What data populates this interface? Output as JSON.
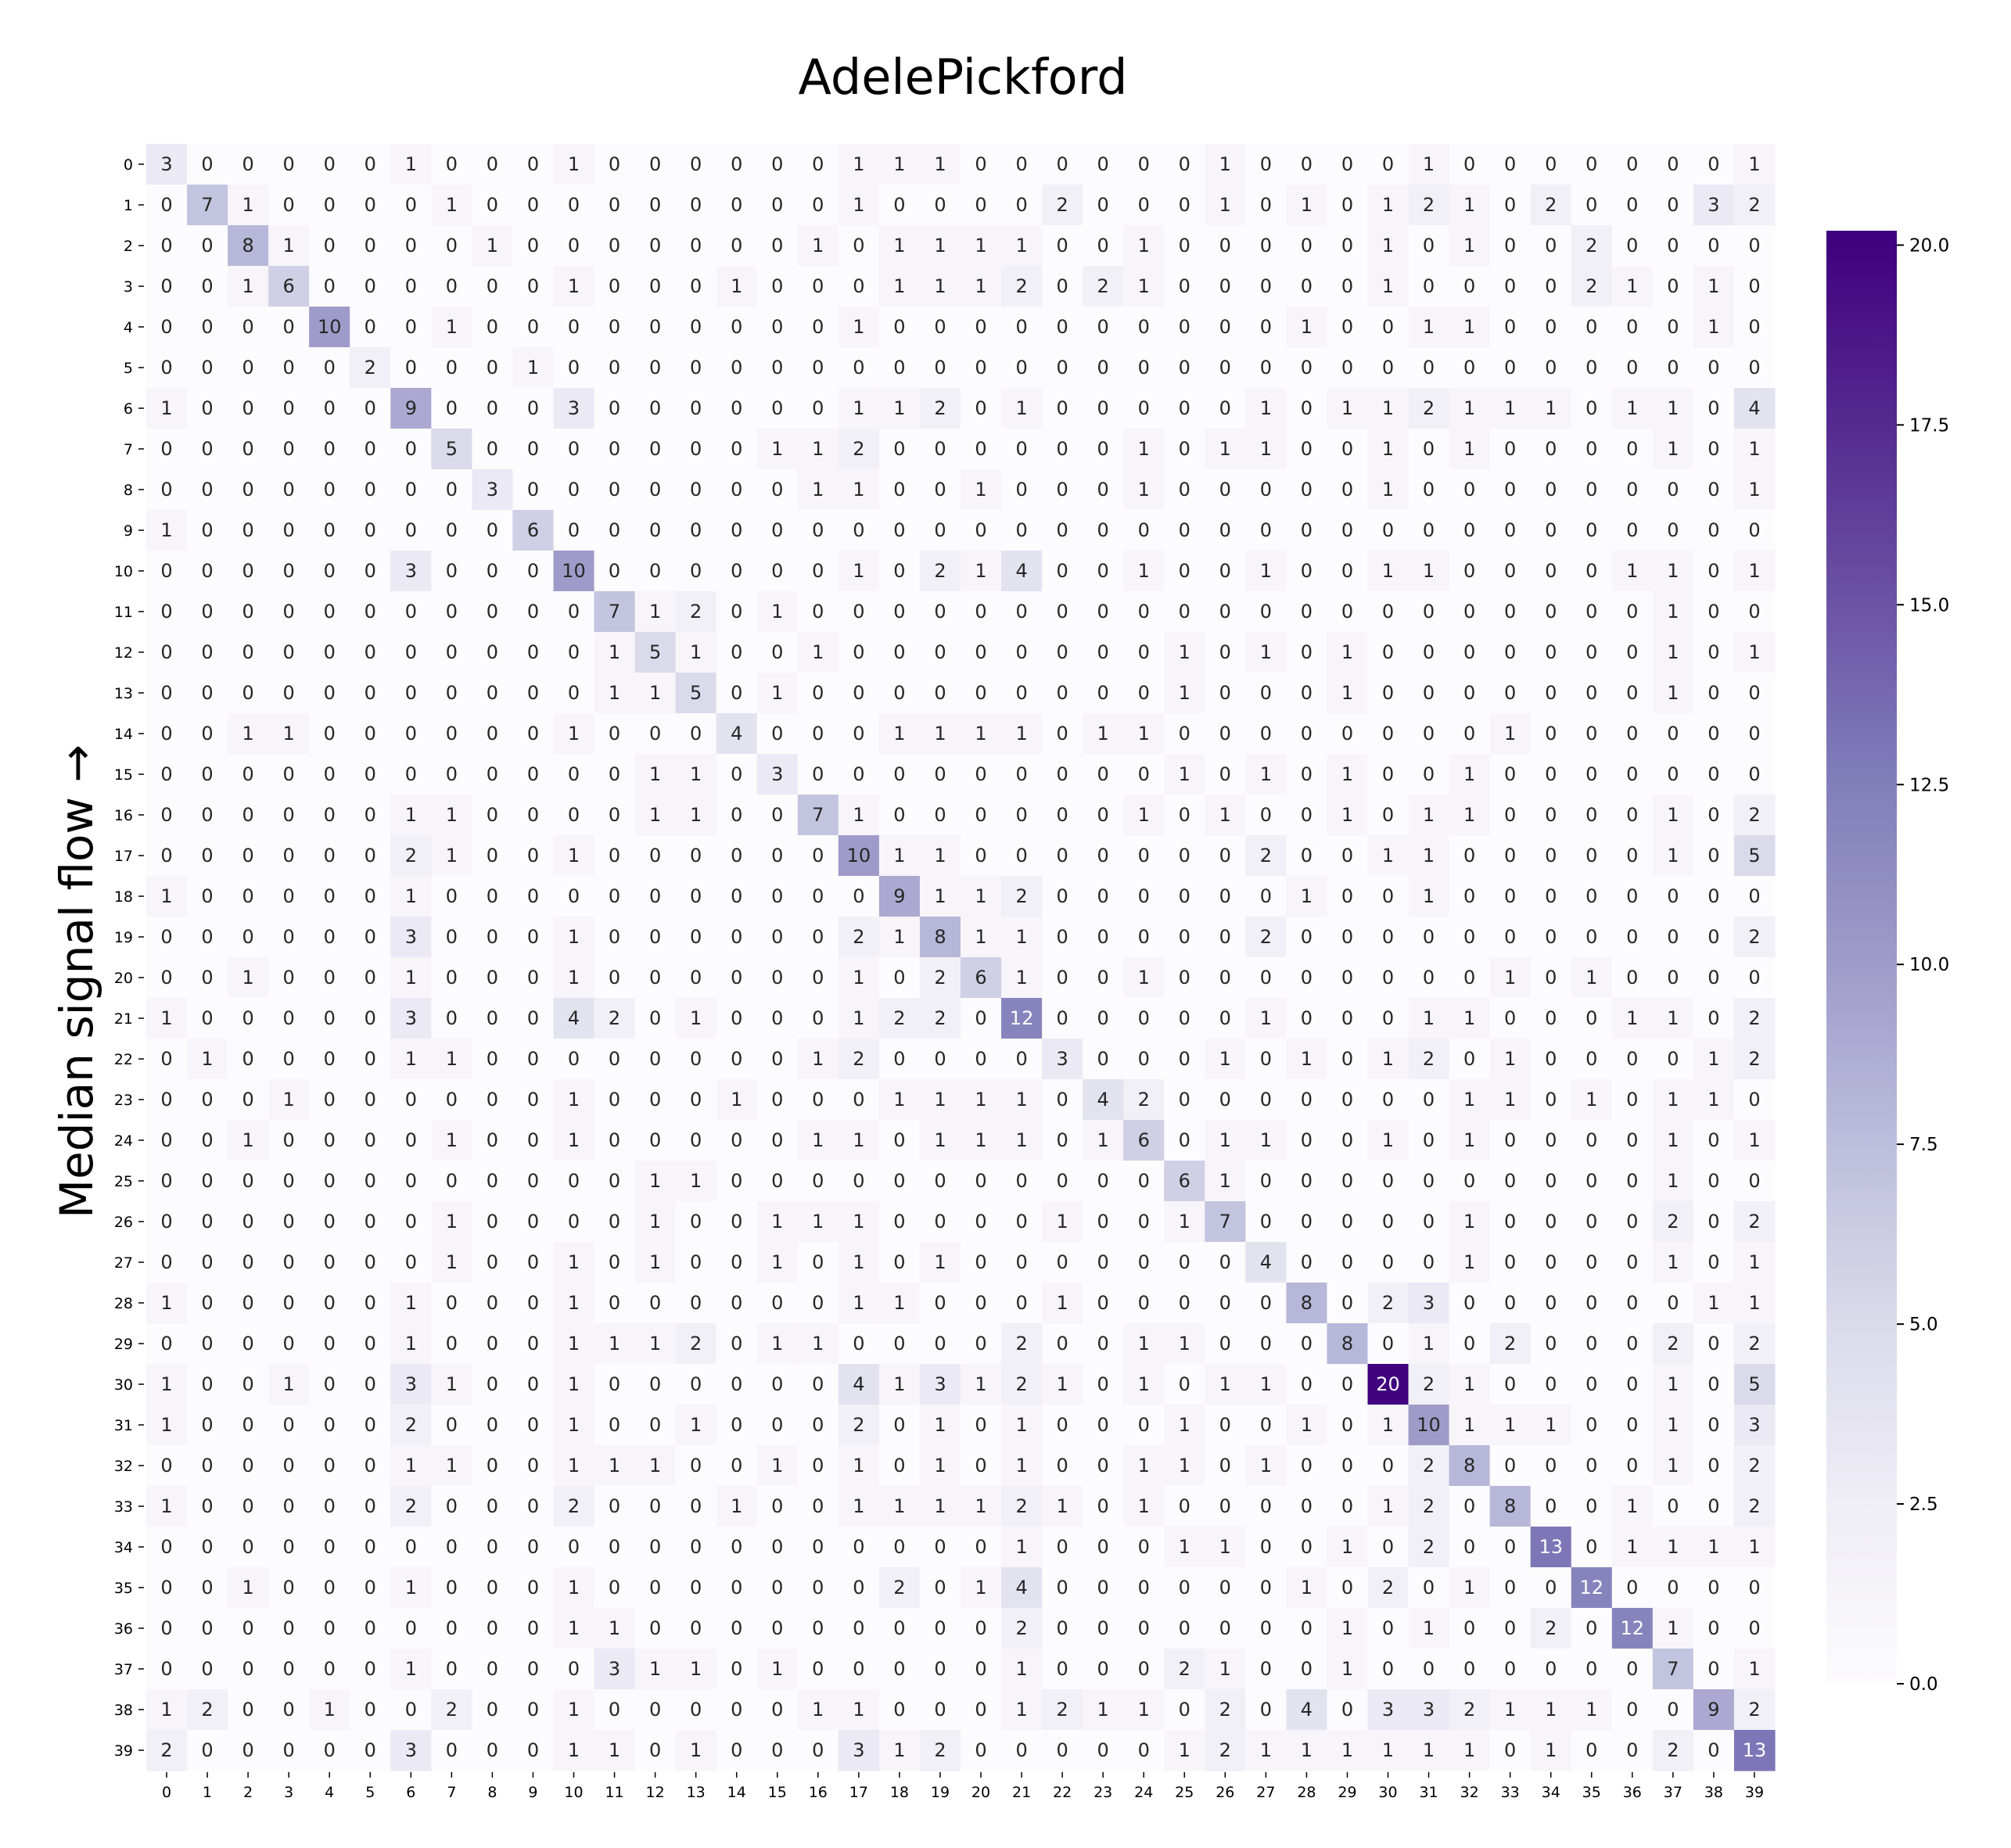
{
  "chart_data": {
    "type": "heatmap",
    "title": "AdelePickford",
    "ylabel": "Median signal flow →",
    "xlabel": "",
    "x_categories": [
      "0",
      "1",
      "2",
      "3",
      "4",
      "5",
      "6",
      "7",
      "8",
      "9",
      "10",
      "11",
      "12",
      "13",
      "14",
      "15",
      "16",
      "17",
      "18",
      "19",
      "20",
      "21",
      "22",
      "23",
      "24",
      "25",
      "26",
      "27",
      "28",
      "29",
      "30",
      "31",
      "32",
      "33",
      "34",
      "35",
      "36",
      "37",
      "38",
      "39"
    ],
    "y_categories": [
      "0",
      "1",
      "2",
      "3",
      "4",
      "5",
      "6",
      "7",
      "8",
      "9",
      "10",
      "11",
      "12",
      "13",
      "14",
      "15",
      "16",
      "17",
      "18",
      "19",
      "20",
      "21",
      "22",
      "23",
      "24",
      "25",
      "26",
      "27",
      "28",
      "29",
      "30",
      "31",
      "32",
      "33",
      "34",
      "35",
      "36",
      "37",
      "38",
      "39"
    ],
    "values": [
      [
        3,
        0,
        0,
        0,
        0,
        0,
        1,
        0,
        0,
        0,
        1,
        0,
        0,
        0,
        0,
        0,
        0,
        1,
        1,
        1,
        0,
        0,
        0,
        0,
        0,
        0,
        1,
        0,
        0,
        0,
        0,
        1,
        0,
        0,
        0,
        0,
        0,
        0,
        0,
        1
      ],
      [
        0,
        7,
        1,
        0,
        0,
        0,
        0,
        1,
        0,
        0,
        0,
        0,
        0,
        0,
        0,
        0,
        0,
        1,
        0,
        0,
        0,
        0,
        2,
        0,
        0,
        0,
        1,
        0,
        1,
        0,
        1,
        2,
        1,
        0,
        2,
        0,
        0,
        0,
        3,
        2
      ],
      [
        0,
        0,
        8,
        1,
        0,
        0,
        0,
        0,
        1,
        0,
        0,
        0,
        0,
        0,
        0,
        0,
        1,
        0,
        1,
        1,
        1,
        1,
        0,
        0,
        1,
        0,
        0,
        0,
        0,
        0,
        1,
        0,
        1,
        0,
        0,
        2,
        0,
        0,
        0,
        0
      ],
      [
        0,
        0,
        1,
        6,
        0,
        0,
        0,
        0,
        0,
        0,
        1,
        0,
        0,
        0,
        1,
        0,
        0,
        0,
        1,
        1,
        1,
        2,
        0,
        2,
        1,
        0,
        0,
        0,
        0,
        0,
        1,
        0,
        0,
        0,
        0,
        2,
        1,
        0,
        1,
        0
      ],
      [
        0,
        0,
        0,
        0,
        10,
        0,
        0,
        1,
        0,
        0,
        0,
        0,
        0,
        0,
        0,
        0,
        0,
        1,
        0,
        0,
        0,
        0,
        0,
        0,
        0,
        0,
        0,
        0,
        1,
        0,
        0,
        1,
        1,
        0,
        0,
        0,
        0,
        0,
        1,
        0
      ],
      [
        0,
        0,
        0,
        0,
        0,
        2,
        0,
        0,
        0,
        1,
        0,
        0,
        0,
        0,
        0,
        0,
        0,
        0,
        0,
        0,
        0,
        0,
        0,
        0,
        0,
        0,
        0,
        0,
        0,
        0,
        0,
        0,
        0,
        0,
        0,
        0,
        0,
        0,
        0,
        0
      ],
      [
        1,
        0,
        0,
        0,
        0,
        0,
        9,
        0,
        0,
        0,
        3,
        0,
        0,
        0,
        0,
        0,
        0,
        1,
        1,
        2,
        0,
        1,
        0,
        0,
        0,
        0,
        0,
        1,
        0,
        1,
        1,
        2,
        1,
        1,
        1,
        0,
        1,
        1,
        0,
        4
      ],
      [
        0,
        0,
        0,
        0,
        0,
        0,
        0,
        5,
        0,
        0,
        0,
        0,
        0,
        0,
        0,
        1,
        1,
        2,
        0,
        0,
        0,
        0,
        0,
        0,
        1,
        0,
        1,
        1,
        0,
        0,
        1,
        0,
        1,
        0,
        0,
        0,
        0,
        1,
        0,
        1
      ],
      [
        0,
        0,
        0,
        0,
        0,
        0,
        0,
        0,
        3,
        0,
        0,
        0,
        0,
        0,
        0,
        0,
        1,
        1,
        0,
        0,
        1,
        0,
        0,
        0,
        1,
        0,
        0,
        0,
        0,
        0,
        1,
        0,
        0,
        0,
        0,
        0,
        0,
        0,
        0,
        1
      ],
      [
        1,
        0,
        0,
        0,
        0,
        0,
        0,
        0,
        0,
        6,
        0,
        0,
        0,
        0,
        0,
        0,
        0,
        0,
        0,
        0,
        0,
        0,
        0,
        0,
        0,
        0,
        0,
        0,
        0,
        0,
        0,
        0,
        0,
        0,
        0,
        0,
        0,
        0,
        0,
        0
      ],
      [
        0,
        0,
        0,
        0,
        0,
        0,
        3,
        0,
        0,
        0,
        10,
        0,
        0,
        0,
        0,
        0,
        0,
        1,
        0,
        2,
        1,
        4,
        0,
        0,
        1,
        0,
        0,
        1,
        0,
        0,
        1,
        1,
        0,
        0,
        0,
        0,
        1,
        1,
        0,
        1
      ],
      [
        0,
        0,
        0,
        0,
        0,
        0,
        0,
        0,
        0,
        0,
        0,
        7,
        1,
        2,
        0,
        1,
        0,
        0,
        0,
        0,
        0,
        0,
        0,
        0,
        0,
        0,
        0,
        0,
        0,
        0,
        0,
        0,
        0,
        0,
        0,
        0,
        0,
        1,
        0,
        0
      ],
      [
        0,
        0,
        0,
        0,
        0,
        0,
        0,
        0,
        0,
        0,
        0,
        1,
        5,
        1,
        0,
        0,
        1,
        0,
        0,
        0,
        0,
        0,
        0,
        0,
        0,
        1,
        0,
        1,
        0,
        1,
        0,
        0,
        0,
        0,
        0,
        0,
        0,
        1,
        0,
        1
      ],
      [
        0,
        0,
        0,
        0,
        0,
        0,
        0,
        0,
        0,
        0,
        0,
        1,
        1,
        5,
        0,
        1,
        0,
        0,
        0,
        0,
        0,
        0,
        0,
        0,
        0,
        1,
        0,
        0,
        0,
        1,
        0,
        0,
        0,
        0,
        0,
        0,
        0,
        1,
        0,
        0
      ],
      [
        0,
        0,
        1,
        1,
        0,
        0,
        0,
        0,
        0,
        0,
        1,
        0,
        0,
        0,
        4,
        0,
        0,
        0,
        1,
        1,
        1,
        1,
        0,
        1,
        1,
        0,
        0,
        0,
        0,
        0,
        0,
        0,
        0,
        1,
        0,
        0,
        0,
        0,
        0,
        0
      ],
      [
        0,
        0,
        0,
        0,
        0,
        0,
        0,
        0,
        0,
        0,
        0,
        0,
        1,
        1,
        0,
        3,
        0,
        0,
        0,
        0,
        0,
        0,
        0,
        0,
        0,
        1,
        0,
        1,
        0,
        1,
        0,
        0,
        1,
        0,
        0,
        0,
        0,
        0,
        0,
        0
      ],
      [
        0,
        0,
        0,
        0,
        0,
        0,
        1,
        1,
        0,
        0,
        0,
        0,
        1,
        1,
        0,
        0,
        7,
        1,
        0,
        0,
        0,
        0,
        0,
        0,
        1,
        0,
        1,
        0,
        0,
        1,
        0,
        1,
        1,
        0,
        0,
        0,
        0,
        1,
        0,
        2
      ],
      [
        0,
        0,
        0,
        0,
        0,
        0,
        2,
        1,
        0,
        0,
        1,
        0,
        0,
        0,
        0,
        0,
        0,
        10,
        1,
        1,
        0,
        0,
        0,
        0,
        0,
        0,
        0,
        2,
        0,
        0,
        1,
        1,
        0,
        0,
        0,
        0,
        0,
        1,
        0,
        5
      ],
      [
        1,
        0,
        0,
        0,
        0,
        0,
        1,
        0,
        0,
        0,
        0,
        0,
        0,
        0,
        0,
        0,
        0,
        0,
        9,
        1,
        1,
        2,
        0,
        0,
        0,
        0,
        0,
        0,
        1,
        0,
        0,
        1,
        0,
        0,
        0,
        0,
        0,
        0,
        0,
        0
      ],
      [
        0,
        0,
        0,
        0,
        0,
        0,
        3,
        0,
        0,
        0,
        1,
        0,
        0,
        0,
        0,
        0,
        0,
        2,
        1,
        8,
        1,
        1,
        0,
        0,
        0,
        0,
        0,
        2,
        0,
        0,
        0,
        0,
        0,
        0,
        0,
        0,
        0,
        0,
        0,
        2
      ],
      [
        0,
        0,
        1,
        0,
        0,
        0,
        1,
        0,
        0,
        0,
        1,
        0,
        0,
        0,
        0,
        0,
        0,
        1,
        0,
        2,
        6,
        1,
        0,
        0,
        1,
        0,
        0,
        0,
        0,
        0,
        0,
        0,
        0,
        1,
        0,
        1,
        0,
        0,
        0,
        0
      ],
      [
        1,
        0,
        0,
        0,
        0,
        0,
        3,
        0,
        0,
        0,
        4,
        2,
        0,
        1,
        0,
        0,
        0,
        1,
        2,
        2,
        0,
        12,
        0,
        0,
        0,
        0,
        0,
        1,
        0,
        0,
        0,
        1,
        1,
        0,
        0,
        0,
        1,
        1,
        0,
        2
      ],
      [
        0,
        1,
        0,
        0,
        0,
        0,
        1,
        1,
        0,
        0,
        0,
        0,
        0,
        0,
        0,
        0,
        1,
        2,
        0,
        0,
        0,
        0,
        3,
        0,
        0,
        0,
        1,
        0,
        1,
        0,
        1,
        2,
        0,
        1,
        0,
        0,
        0,
        0,
        1,
        2
      ],
      [
        0,
        0,
        0,
        1,
        0,
        0,
        0,
        0,
        0,
        0,
        1,
        0,
        0,
        0,
        1,
        0,
        0,
        0,
        1,
        1,
        1,
        1,
        0,
        4,
        2,
        0,
        0,
        0,
        0,
        0,
        0,
        0,
        1,
        1,
        0,
        1,
        0,
        1,
        1,
        0
      ],
      [
        0,
        0,
        1,
        0,
        0,
        0,
        0,
        1,
        0,
        0,
        1,
        0,
        0,
        0,
        0,
        0,
        1,
        1,
        0,
        1,
        1,
        1,
        0,
        1,
        6,
        0,
        1,
        1,
        0,
        0,
        1,
        0,
        1,
        0,
        0,
        0,
        0,
        1,
        0,
        1
      ],
      [
        0,
        0,
        0,
        0,
        0,
        0,
        0,
        0,
        0,
        0,
        0,
        0,
        1,
        1,
        0,
        0,
        0,
        0,
        0,
        0,
        0,
        0,
        0,
        0,
        0,
        6,
        1,
        0,
        0,
        0,
        0,
        0,
        0,
        0,
        0,
        0,
        0,
        1,
        0,
        0
      ],
      [
        0,
        0,
        0,
        0,
        0,
        0,
        0,
        1,
        0,
        0,
        0,
        0,
        1,
        0,
        0,
        1,
        1,
        1,
        0,
        0,
        0,
        0,
        1,
        0,
        0,
        1,
        7,
        0,
        0,
        0,
        0,
        0,
        1,
        0,
        0,
        0,
        0,
        2,
        0,
        2
      ],
      [
        0,
        0,
        0,
        0,
        0,
        0,
        0,
        1,
        0,
        0,
        1,
        0,
        1,
        0,
        0,
        1,
        0,
        1,
        0,
        1,
        0,
        0,
        0,
        0,
        0,
        0,
        0,
        4,
        0,
        0,
        0,
        0,
        1,
        0,
        0,
        0,
        0,
        1,
        0,
        1
      ],
      [
        1,
        0,
        0,
        0,
        0,
        0,
        1,
        0,
        0,
        0,
        1,
        0,
        0,
        0,
        0,
        0,
        0,
        1,
        1,
        0,
        0,
        0,
        1,
        0,
        0,
        0,
        0,
        0,
        8,
        0,
        2,
        3,
        0,
        0,
        0,
        0,
        0,
        0,
        1,
        1
      ],
      [
        0,
        0,
        0,
        0,
        0,
        0,
        1,
        0,
        0,
        0,
        1,
        1,
        1,
        2,
        0,
        1,
        1,
        0,
        0,
        0,
        0,
        2,
        0,
        0,
        1,
        1,
        0,
        0,
        0,
        8,
        0,
        1,
        0,
        2,
        0,
        0,
        0,
        2,
        0,
        2
      ],
      [
        1,
        0,
        0,
        1,
        0,
        0,
        3,
        1,
        0,
        0,
        1,
        0,
        0,
        0,
        0,
        0,
        0,
        4,
        1,
        3,
        1,
        2,
        1,
        0,
        1,
        0,
        1,
        1,
        0,
        0,
        20,
        2,
        1,
        0,
        0,
        0,
        0,
        1,
        0,
        5
      ],
      [
        1,
        0,
        0,
        0,
        0,
        0,
        2,
        0,
        0,
        0,
        1,
        0,
        0,
        1,
        0,
        0,
        0,
        2,
        0,
        1,
        0,
        1,
        0,
        0,
        0,
        1,
        0,
        0,
        1,
        0,
        1,
        10,
        1,
        1,
        1,
        0,
        0,
        1,
        0,
        3
      ],
      [
        0,
        0,
        0,
        0,
        0,
        0,
        1,
        1,
        0,
        0,
        1,
        1,
        1,
        0,
        0,
        1,
        0,
        1,
        0,
        1,
        0,
        1,
        0,
        0,
        1,
        1,
        0,
        1,
        0,
        0,
        0,
        2,
        8,
        0,
        0,
        0,
        0,
        1,
        0,
        2
      ],
      [
        1,
        0,
        0,
        0,
        0,
        0,
        2,
        0,
        0,
        0,
        2,
        0,
        0,
        0,
        1,
        0,
        0,
        1,
        1,
        1,
        1,
        2,
        1,
        0,
        1,
        0,
        0,
        0,
        0,
        0,
        1,
        2,
        0,
        8,
        0,
        0,
        1,
        0,
        0,
        2
      ],
      [
        0,
        0,
        0,
        0,
        0,
        0,
        0,
        0,
        0,
        0,
        0,
        0,
        0,
        0,
        0,
        0,
        0,
        0,
        0,
        0,
        0,
        1,
        0,
        0,
        0,
        1,
        1,
        0,
        0,
        1,
        0,
        2,
        0,
        0,
        13,
        0,
        1,
        1,
        1,
        1
      ],
      [
        0,
        0,
        1,
        0,
        0,
        0,
        1,
        0,
        0,
        0,
        1,
        0,
        0,
        0,
        0,
        0,
        0,
        0,
        2,
        0,
        1,
        4,
        0,
        0,
        0,
        0,
        0,
        0,
        1,
        0,
        2,
        0,
        1,
        0,
        0,
        12,
        0,
        0,
        0,
        0
      ],
      [
        0,
        0,
        0,
        0,
        0,
        0,
        0,
        0,
        0,
        0,
        1,
        1,
        0,
        0,
        0,
        0,
        0,
        0,
        0,
        0,
        0,
        2,
        0,
        0,
        0,
        0,
        0,
        0,
        0,
        1,
        0,
        1,
        0,
        0,
        2,
        0,
        12,
        1,
        0,
        0
      ],
      [
        0,
        0,
        0,
        0,
        0,
        0,
        1,
        0,
        0,
        0,
        0,
        3,
        1,
        1,
        0,
        1,
        0,
        0,
        0,
        0,
        0,
        1,
        0,
        0,
        0,
        2,
        1,
        0,
        0,
        1,
        0,
        0,
        0,
        0,
        0,
        0,
        0,
        7,
        0,
        1
      ],
      [
        1,
        2,
        0,
        0,
        1,
        0,
        0,
        2,
        0,
        0,
        1,
        0,
        0,
        0,
        0,
        0,
        1,
        1,
        0,
        0,
        0,
        1,
        2,
        1,
        1,
        0,
        2,
        0,
        4,
        0,
        3,
        3,
        2,
        1,
        1,
        1,
        0,
        0,
        9,
        2
      ],
      [
        2,
        0,
        0,
        0,
        0,
        0,
        3,
        0,
        0,
        0,
        1,
        1,
        0,
        1,
        0,
        0,
        0,
        3,
        1,
        2,
        0,
        0,
        0,
        0,
        0,
        1,
        2,
        1,
        1,
        1,
        1,
        1,
        1,
        0,
        1,
        0,
        0,
        2,
        0,
        13
      ]
    ],
    "vmin": 0,
    "vmax": 20.2,
    "colormap": "Purples",
    "colors": {
      "low": "#fcfbfd",
      "high": "#3f007d"
    },
    "colorbar": {
      "ticks": [
        0.0,
        2.5,
        5.0,
        7.5,
        10.0,
        12.5,
        15.0,
        17.5,
        20.0
      ],
      "tick_labels": [
        "0.0",
        "2.5",
        "5.0",
        "7.5",
        "10.0",
        "12.5",
        "15.0",
        "17.5",
        "20.0"
      ]
    },
    "annotations": "cell values shown in each cell",
    "grid": false,
    "legend": "colorbar right"
  }
}
